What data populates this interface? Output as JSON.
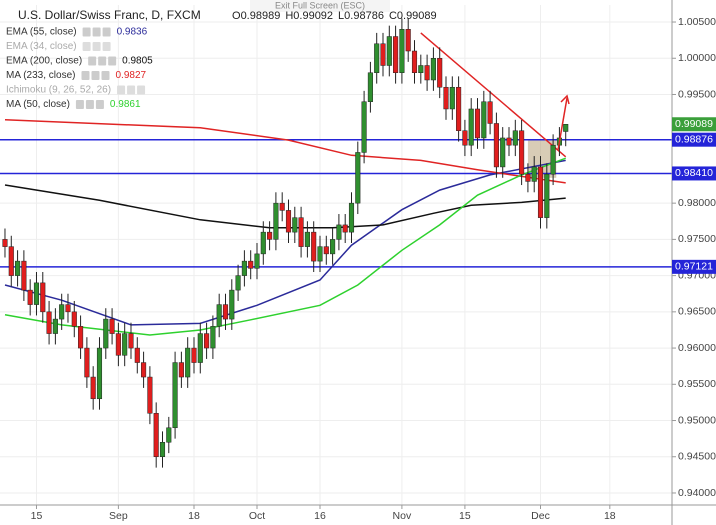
{
  "chart_data": {
    "type": "candlestick",
    "title": "U.S. Dollar/Swiss Franc, D, FXCM",
    "banner": "Exit Full Screen (ESC)",
    "ohlc_labels": [
      "O",
      "H",
      "L",
      "C"
    ],
    "up_color": "#2f8f2f",
    "down_color": "#e01e1e",
    "open": [
      0.975,
      0.974,
      0.97,
      0.972,
      0.968,
      0.966,
      0.969,
      0.965,
      0.962,
      0.964,
      0.966,
      0.965,
      0.963,
      0.96,
      0.956,
      0.953,
      0.96,
      0.964,
      0.962,
      0.959,
      0.962,
      0.96,
      0.958,
      0.956,
      0.951,
      0.945,
      0.947,
      0.949,
      0.958,
      0.956,
      0.96,
      0.958,
      0.962,
      0.96,
      0.963,
      0.966,
      0.964,
      0.968,
      0.97,
      0.972,
      0.971,
      0.973,
      0.976,
      0.975,
      0.98,
      0.979,
      0.976,
      0.978,
      0.974,
      0.976,
      0.972,
      0.974,
      0.973,
      0.975,
      0.977,
      0.976,
      0.98,
      0.987,
      0.994,
      0.998,
      1.002,
      0.999,
      1.003,
      0.998,
      1.004,
      1.001,
      0.998,
      0.999,
      0.997,
      1.0,
      0.996,
      0.993,
      0.996,
      0.99,
      0.988,
      0.993,
      0.989,
      0.994,
      0.991,
      0.985,
      0.989,
      0.988,
      0.99,
      0.984,
      0.983,
      0.985,
      0.978,
      0.984,
      0.988,
      0.98989
    ],
    "high": [
      0.9765,
      0.9755,
      0.9735,
      0.9735,
      0.9695,
      0.9705,
      0.9705,
      0.9665,
      0.9655,
      0.9675,
      0.9675,
      0.9665,
      0.9645,
      0.9615,
      0.9575,
      0.9615,
      0.9655,
      0.9655,
      0.9635,
      0.9635,
      0.9635,
      0.9615,
      0.9595,
      0.9575,
      0.9525,
      0.9485,
      0.9505,
      0.9595,
      0.9595,
      0.9615,
      0.9615,
      0.9635,
      0.9635,
      0.9645,
      0.9675,
      0.9675,
      0.9695,
      0.9715,
      0.9735,
      0.9735,
      0.9745,
      0.9775,
      0.9775,
      0.9815,
      0.9815,
      0.9805,
      0.9795,
      0.9795,
      0.9775,
      0.9775,
      0.9755,
      0.9755,
      0.9765,
      0.9785,
      0.9785,
      0.9815,
      0.9885,
      0.9955,
      0.9995,
      1.0035,
      1.0035,
      1.0045,
      1.0045,
      1.0055,
      1.0055,
      1.0025,
      1.0005,
      1.0005,
      1.0015,
      1.0015,
      0.9975,
      0.9975,
      0.9975,
      0.9915,
      0.9945,
      0.9945,
      0.9955,
      0.9955,
      0.9925,
      0.9905,
      0.9905,
      0.9915,
      0.9915,
      0.9855,
      0.9865,
      0.9865,
      0.9855,
      0.9895,
      0.9905,
      0.99092
    ],
    "low": [
      0.9725,
      0.9685,
      0.9685,
      0.9665,
      0.9645,
      0.9645,
      0.9635,
      0.9605,
      0.9605,
      0.9625,
      0.9635,
      0.9615,
      0.9585,
      0.9545,
      0.9515,
      0.9515,
      0.9585,
      0.9605,
      0.9575,
      0.9575,
      0.9585,
      0.9565,
      0.9545,
      0.9495,
      0.9435,
      0.9435,
      0.9455,
      0.9475,
      0.9545,
      0.9545,
      0.9565,
      0.9565,
      0.9585,
      0.9585,
      0.9615,
      0.9625,
      0.9625,
      0.9665,
      0.9685,
      0.9695,
      0.9695,
      0.9715,
      0.9735,
      0.9735,
      0.9775,
      0.9745,
      0.9745,
      0.9725,
      0.9725,
      0.9705,
      0.9705,
      0.9715,
      0.9715,
      0.9735,
      0.9745,
      0.9745,
      0.9785,
      0.9855,
      0.9925,
      0.9965,
      0.9975,
      0.9975,
      0.9965,
      0.9965,
      0.9995,
      0.9965,
      0.9965,
      0.9955,
      0.9955,
      0.9945,
      0.9915,
      0.9915,
      0.9885,
      0.9865,
      0.9865,
      0.9875,
      0.9875,
      0.9895,
      0.9835,
      0.9835,
      0.9865,
      0.9865,
      0.9825,
      0.9815,
      0.9815,
      0.9765,
      0.9765,
      0.9825,
      0.9865,
      0.98786
    ],
    "close": [
      0.974,
      0.97,
      0.972,
      0.968,
      0.966,
      0.969,
      0.965,
      0.962,
      0.964,
      0.966,
      0.965,
      0.963,
      0.96,
      0.956,
      0.953,
      0.96,
      0.964,
      0.962,
      0.959,
      0.962,
      0.96,
      0.958,
      0.956,
      0.951,
      0.945,
      0.947,
      0.949,
      0.958,
      0.956,
      0.96,
      0.958,
      0.962,
      0.96,
      0.963,
      0.966,
      0.964,
      0.968,
      0.97,
      0.972,
      0.971,
      0.973,
      0.976,
      0.975,
      0.98,
      0.979,
      0.976,
      0.978,
      0.974,
      0.976,
      0.972,
      0.974,
      0.973,
      0.975,
      0.977,
      0.976,
      0.98,
      0.987,
      0.994,
      0.998,
      1.002,
      0.999,
      1.003,
      0.998,
      1.004,
      1.001,
      0.998,
      0.999,
      0.997,
      1.0,
      0.996,
      0.993,
      0.996,
      0.99,
      0.988,
      0.993,
      0.989,
      0.994,
      0.991,
      0.985,
      0.989,
      0.988,
      0.99,
      0.984,
      0.983,
      0.985,
      0.978,
      0.984,
      0.988,
      0.989,
      0.99089
    ],
    "indicators": [
      {
        "name": "EMA (55, close)",
        "value": 0.9836,
        "color": "#2b2b9a",
        "x": [
          0,
          9,
          20,
          31,
          40,
          50,
          55,
          63,
          69,
          77,
          89
        ],
        "values": [
          0.9687,
          0.9666,
          0.9632,
          0.9634,
          0.9659,
          0.9694,
          0.9742,
          0.9791,
          0.9818,
          0.9839,
          0.9859
        ]
      },
      {
        "name": "EMA (34, close)",
        "faded": true
      },
      {
        "name": "EMA (200, close)",
        "value": 0.9805,
        "color": "#111111",
        "x": [
          0,
          15,
          31,
          42,
          52,
          60,
          68,
          74,
          82,
          89
        ],
        "values": [
          0.9825,
          0.9804,
          0.9777,
          0.9766,
          0.9766,
          0.977,
          0.9786,
          0.9797,
          0.9801,
          0.9807
        ]
      },
      {
        "name": "MA (233, close)",
        "value": 0.9827,
        "color": "#e02424",
        "x": [
          0,
          31,
          45,
          55,
          66,
          75,
          89
        ],
        "values": [
          0.9915,
          0.9904,
          0.9887,
          0.9866,
          0.9859,
          0.9846,
          0.9828
        ]
      },
      {
        "name": "Ichimoku (9, 26, 52, 26)",
        "faded": true
      },
      {
        "name": "MA (50, close)",
        "value": 0.9861,
        "color": "#2ed12e",
        "x": [
          0,
          9,
          23,
          31,
          39,
          50,
          56,
          63,
          69,
          75,
          82,
          89
        ],
        "values": [
          0.9646,
          0.9632,
          0.9618,
          0.9625,
          0.9639,
          0.9659,
          0.9687,
          0.9735,
          0.977,
          0.9811,
          0.9839,
          0.9862
        ]
      }
    ],
    "levels": [
      {
        "value": 0.98876,
        "color": "#2424d8"
      },
      {
        "value": 0.9841,
        "label": "0.98410",
        "color": "#2424d8"
      },
      {
        "value": 0.97121,
        "color": "#2424d8"
      }
    ],
    "last_color": "#3a9f3a",
    "trendline": {
      "color": "#e02424",
      "x": [
        66,
        89
      ],
      "values": [
        1.0035,
        0.9864
      ]
    },
    "zone": {
      "color": "#b8a27a",
      "x": [
        83,
        87.5
      ],
      "values": [
        0.9887,
        0.9835
      ]
    },
    "xlim": [
      -0.79,
      105.87
    ],
    "xticks": [
      {
        "value": 5,
        "label": "15"
      },
      {
        "value": 18,
        "label": "Sep"
      },
      {
        "value": 30,
        "label": "18"
      },
      {
        "value": 40,
        "label": "Oct"
      },
      {
        "value": 50,
        "label": "16"
      },
      {
        "value": 63,
        "label": "Nov"
      },
      {
        "value": 73,
        "label": "15"
      },
      {
        "value": 85,
        "label": "Dec"
      },
      {
        "value": 96,
        "label": "18"
      }
    ],
    "ylim": [
      0.93834,
      1.00735
    ],
    "yticks": [
      {
        "value": 1.005,
        "label": "1.00500"
      },
      {
        "value": 1.0,
        "label": "1.00000"
      },
      {
        "value": 0.995,
        "label": "0.99500"
      },
      {
        "value": 0.98,
        "label": "0.98000"
      },
      {
        "value": 0.975,
        "label": "0.97500"
      },
      {
        "value": 0.97,
        "label": "0.97000"
      },
      {
        "value": 0.965,
        "label": "0.96500"
      },
      {
        "value": 0.96,
        "label": "0.96000"
      },
      {
        "value": 0.955,
        "label": "0.95500"
      },
      {
        "value": 0.95,
        "label": "0.95000"
      },
      {
        "value": 0.945,
        "label": "0.94500"
      },
      {
        "value": 0.94,
        "label": "0.94000"
      }
    ],
    "grid": true
  }
}
